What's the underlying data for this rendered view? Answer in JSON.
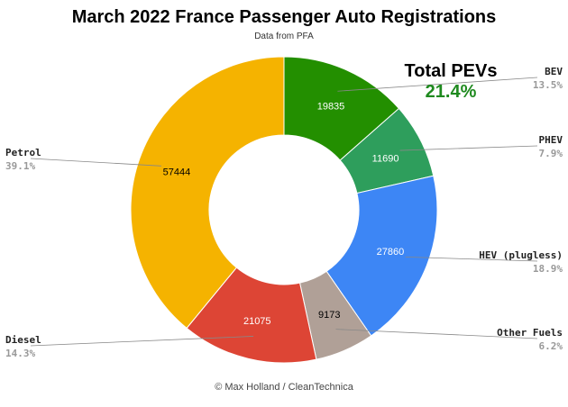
{
  "title": "March 2022 France Passenger Auto Registrations",
  "subtitle": "Data from PFA",
  "footer": "© Max Holland / CleanTechnica",
  "pev_callout": {
    "label": "Total PEVs",
    "value": "21.4%",
    "value_color": "#1f8a1f"
  },
  "chart_data": {
    "type": "pie",
    "donut": true,
    "categories": [
      "BEV",
      "PHEV",
      "HEV (plugless)",
      "Other Fuels",
      "Diesel",
      "Petrol"
    ],
    "values": [
      19835,
      11690,
      27860,
      9173,
      21075,
      57444
    ],
    "percent_labels": [
      "13.5%",
      "7.9%",
      "18.9%",
      "6.2%",
      "14.3%",
      "39.1%"
    ],
    "colors": [
      "#238f00",
      "#2e9e5c",
      "#3d86f5",
      "#b0a097",
      "#dd4535",
      "#f5b300"
    ],
    "value_label_colors": [
      "#ffffff",
      "#ffffff",
      "#ffffff",
      "#000000",
      "#ffffff",
      "#000000"
    ],
    "start_angle_deg": 0,
    "direction": "clockwise"
  }
}
